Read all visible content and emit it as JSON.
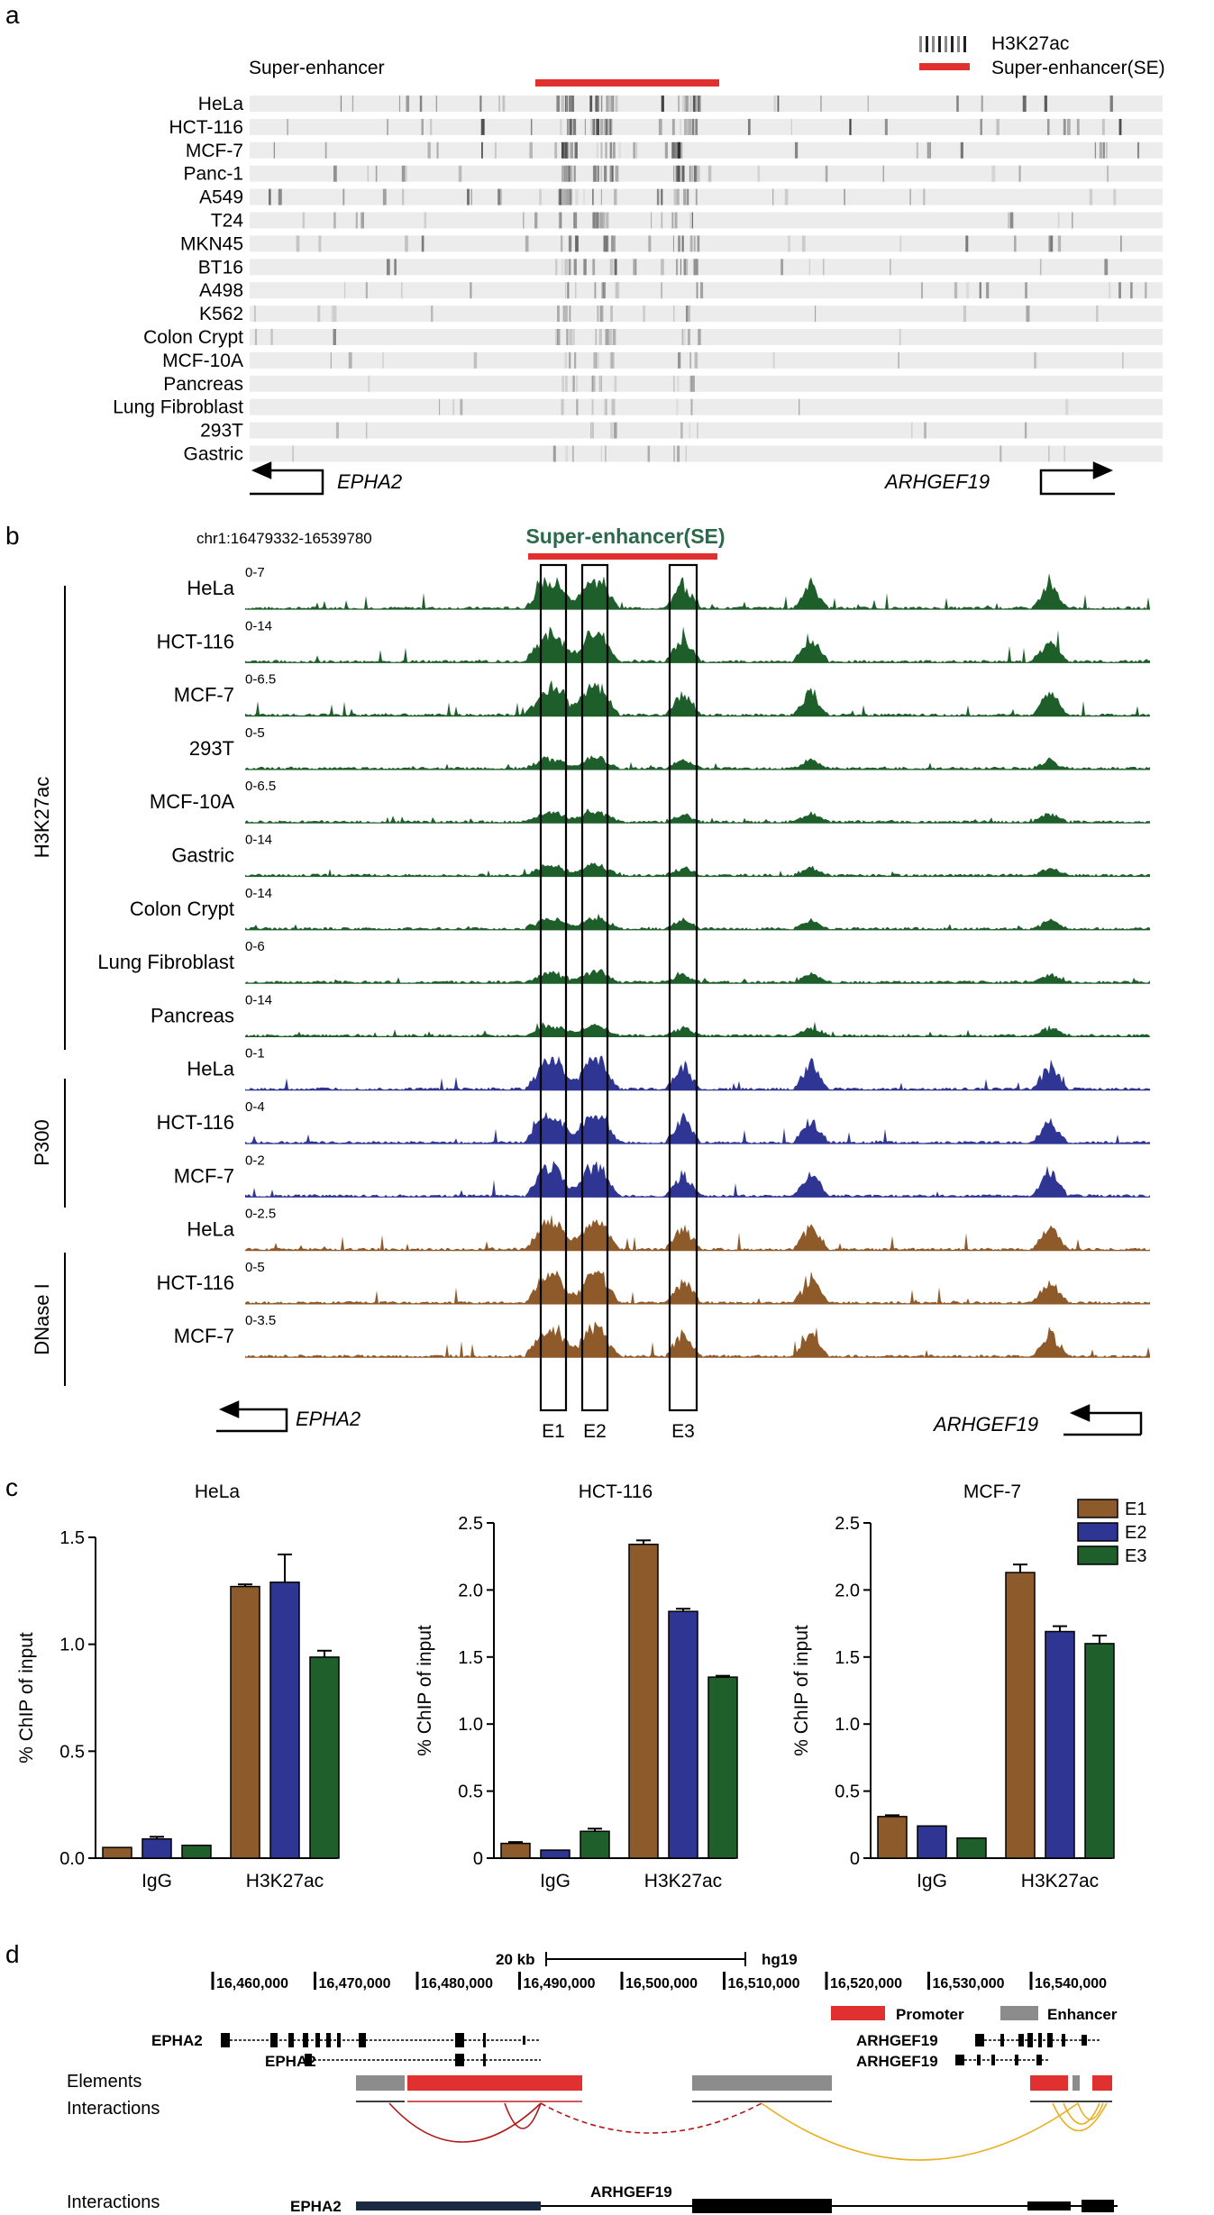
{
  "panel_labels": [
    "a",
    "b",
    "c",
    "d"
  ],
  "colors": {
    "h3k27ac": "#1e5e2a",
    "p300": "#2e3592",
    "dnase": "#8f5a2a",
    "se_red": "#e03030",
    "e1": "#8c5a2b",
    "e2": "#2e3592",
    "e3": "#1f5f2b",
    "enhancer_gray": "#8c8c8c"
  },
  "panel_a": {
    "title": "Super-enhancer",
    "legend": [
      "H3K27ac",
      "Super-enhancer(SE)"
    ],
    "rows": [
      "HeLa",
      "HCT-116",
      "MCF-7",
      "Panc-1",
      "A549",
      "T24",
      "MKN45",
      "BT16",
      "A498",
      "K562",
      "Colon Crypt",
      "MCF-10A",
      "Pancreas",
      "Lung Fibroblast",
      "293T",
      "Gastric"
    ],
    "genes": [
      "EPHA2",
      "ARHGEF19"
    ]
  },
  "panel_b": {
    "coord": "chr1:16479332-16539780",
    "se_label": "Super-enhancer(SE)",
    "groups": [
      "H3K27ac",
      "P300",
      "DNase I"
    ],
    "tracks": [
      {
        "name": "HeLa",
        "range": "0-7",
        "group": "H3K27ac"
      },
      {
        "name": "HCT-116",
        "range": "0-14",
        "group": "H3K27ac"
      },
      {
        "name": "MCF-7",
        "range": "0-6.5",
        "group": "H3K27ac"
      },
      {
        "name": "293T",
        "range": "0-5",
        "group": "H3K27ac"
      },
      {
        "name": "MCF-10A",
        "range": "0-6.5",
        "group": "H3K27ac"
      },
      {
        "name": "Gastric",
        "range": "0-14",
        "group": "H3K27ac"
      },
      {
        "name": "Colon Crypt",
        "range": "0-14",
        "group": "H3K27ac"
      },
      {
        "name": "Lung Fibroblast",
        "range": "0-6",
        "group": "H3K27ac"
      },
      {
        "name": "Pancreas",
        "range": "0-14",
        "group": "H3K27ac"
      },
      {
        "name": "HeLa",
        "range": "0-1",
        "group": "P300"
      },
      {
        "name": "HCT-116",
        "range": "0-4",
        "group": "P300"
      },
      {
        "name": "MCF-7",
        "range": "0-2",
        "group": "P300"
      },
      {
        "name": "HeLa",
        "range": "0-2.5",
        "group": "DNase I"
      },
      {
        "name": "HCT-116",
        "range": "0-5",
        "group": "DNase I"
      },
      {
        "name": "MCF-7",
        "range": "0-3.5",
        "group": "DNase I"
      }
    ],
    "enhancers": [
      "E1",
      "E2",
      "E3"
    ],
    "genes": [
      "EPHA2",
      "ARHGEF19"
    ]
  },
  "chart_data": [
    {
      "type": "bar",
      "title": "HeLa",
      "xlabel": "",
      "ylabel": "% ChIP of input",
      "categories": [
        "IgG",
        "H3K27ac"
      ],
      "ylim": [
        0,
        1.5
      ],
      "yticks": [
        "0.0",
        "0.5",
        "1.0",
        "1.5"
      ],
      "series": [
        {
          "name": "E1",
          "values": [
            0.05,
            1.27
          ],
          "errors": [
            0.0,
            0.01
          ]
        },
        {
          "name": "E2",
          "values": [
            0.09,
            1.29
          ],
          "errors": [
            0.01,
            0.13
          ]
        },
        {
          "name": "E3",
          "values": [
            0.06,
            0.94
          ],
          "errors": [
            0.0,
            0.03
          ]
        }
      ]
    },
    {
      "type": "bar",
      "title": "HCT-116",
      "xlabel": "",
      "ylabel": "% ChIP of input",
      "categories": [
        "IgG",
        "H3K27ac"
      ],
      "ylim": [
        0,
        2.5
      ],
      "yticks": [
        "0",
        "0.5",
        "1.0",
        "1.5",
        "2.0",
        "2.5"
      ],
      "series": [
        {
          "name": "E1",
          "values": [
            0.11,
            2.34
          ],
          "errors": [
            0.01,
            0.03
          ]
        },
        {
          "name": "E2",
          "values": [
            0.06,
            1.84
          ],
          "errors": [
            0.0,
            0.02
          ]
        },
        {
          "name": "E3",
          "values": [
            0.2,
            1.35
          ],
          "errors": [
            0.02,
            0.01
          ]
        }
      ]
    },
    {
      "type": "bar",
      "title": "MCF-7",
      "xlabel": "",
      "ylabel": "% ChIP of input",
      "categories": [
        "IgG",
        "H3K27ac"
      ],
      "ylim": [
        0,
        2.5
      ],
      "yticks": [
        "0",
        "0.5",
        "1.0",
        "1.5",
        "2.0",
        "2.5"
      ],
      "series": [
        {
          "name": "E1",
          "values": [
            0.31,
            2.13
          ],
          "errors": [
            0.01,
            0.06
          ]
        },
        {
          "name": "E2",
          "values": [
            0.24,
            1.69
          ],
          "errors": [
            0.0,
            0.04
          ]
        },
        {
          "name": "E3",
          "values": [
            0.15,
            1.6
          ],
          "errors": [
            0.0,
            0.06
          ]
        }
      ],
      "legend": [
        "E1",
        "E2",
        "E3"
      ]
    }
  ],
  "panel_d": {
    "scale_label": "20 kb",
    "assembly": "hg19",
    "ticks": [
      "16,460,000",
      "16,470,000",
      "16,480,000",
      "16,490,000",
      "16,500,000",
      "16,510,000",
      "16,520,000",
      "16,530,000",
      "16,540,000"
    ],
    "legend": [
      "Promoter",
      "Enhancer"
    ],
    "genes_left": [
      "EPHA2",
      "EPHA2"
    ],
    "genes_right": [
      "ARHGEF19",
      "ARHGEF19"
    ],
    "row_labels": [
      "Elements",
      "Interactions",
      "Interactions"
    ],
    "bottom_genes": [
      "EPHA2",
      "ARHGEF19"
    ]
  }
}
